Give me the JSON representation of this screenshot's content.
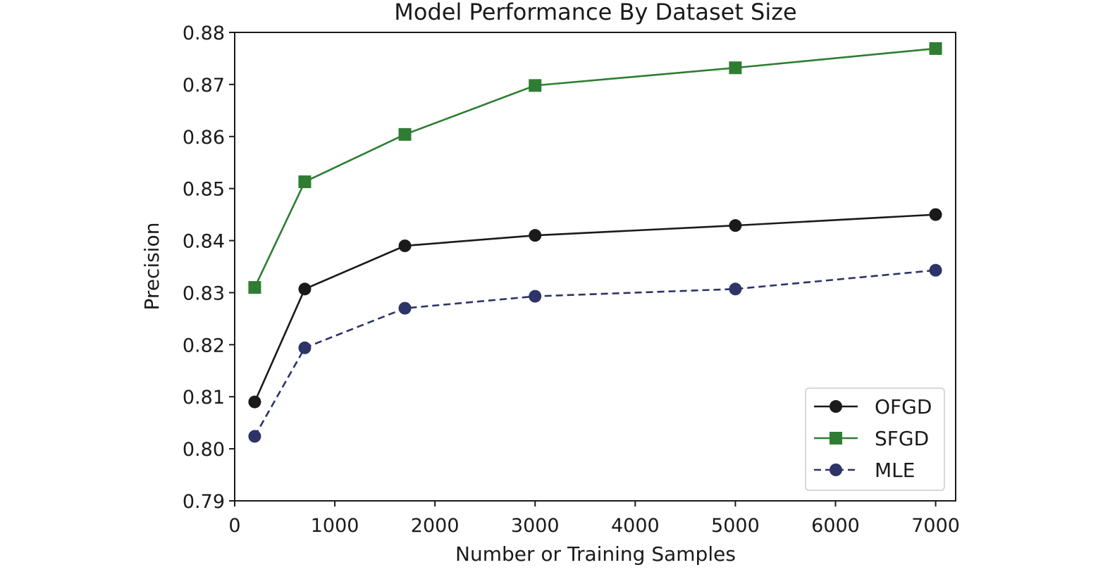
{
  "chart_data": {
    "type": "line",
    "title": "Model Performance By Dataset Size",
    "xlabel": "Number or Training Samples",
    "ylabel": "Precision",
    "xlim": [
      0,
      7200
    ],
    "ylim": [
      0.79,
      0.88
    ],
    "xticks": [
      0,
      1000,
      2000,
      3000,
      4000,
      5000,
      6000,
      7000
    ],
    "xtick_labels": [
      "0",
      "1000",
      "2000",
      "3000",
      "4000",
      "5000",
      "6000",
      "7000"
    ],
    "yticks": [
      0.79,
      0.8,
      0.81,
      0.82,
      0.83,
      0.84,
      0.85,
      0.86,
      0.87,
      0.88
    ],
    "ytick_labels": [
      "0.79",
      "0.80",
      "0.81",
      "0.82",
      "0.83",
      "0.84",
      "0.85",
      "0.86",
      "0.87",
      "0.88"
    ],
    "grid": false,
    "legend_position": "bottom-right",
    "x": [
      200,
      700,
      1700,
      3000,
      5000,
      7000
    ],
    "series": [
      {
        "name": "OFGD",
        "color": "#1a1a1a",
        "marker": "circle",
        "linestyle": "solid",
        "values": [
          0.809,
          0.8307,
          0.839,
          0.841,
          0.8429,
          0.845
        ]
      },
      {
        "name": "SFGD",
        "color": "#2e7d32",
        "marker": "square",
        "linestyle": "solid",
        "values": [
          0.831,
          0.8513,
          0.8604,
          0.8698,
          0.8732,
          0.8769
        ]
      },
      {
        "name": "MLE",
        "color": "#2c3468",
        "marker": "circle",
        "linestyle": "dashed",
        "values": [
          0.8024,
          0.8194,
          0.827,
          0.8293,
          0.8307,
          0.8343
        ]
      }
    ]
  }
}
